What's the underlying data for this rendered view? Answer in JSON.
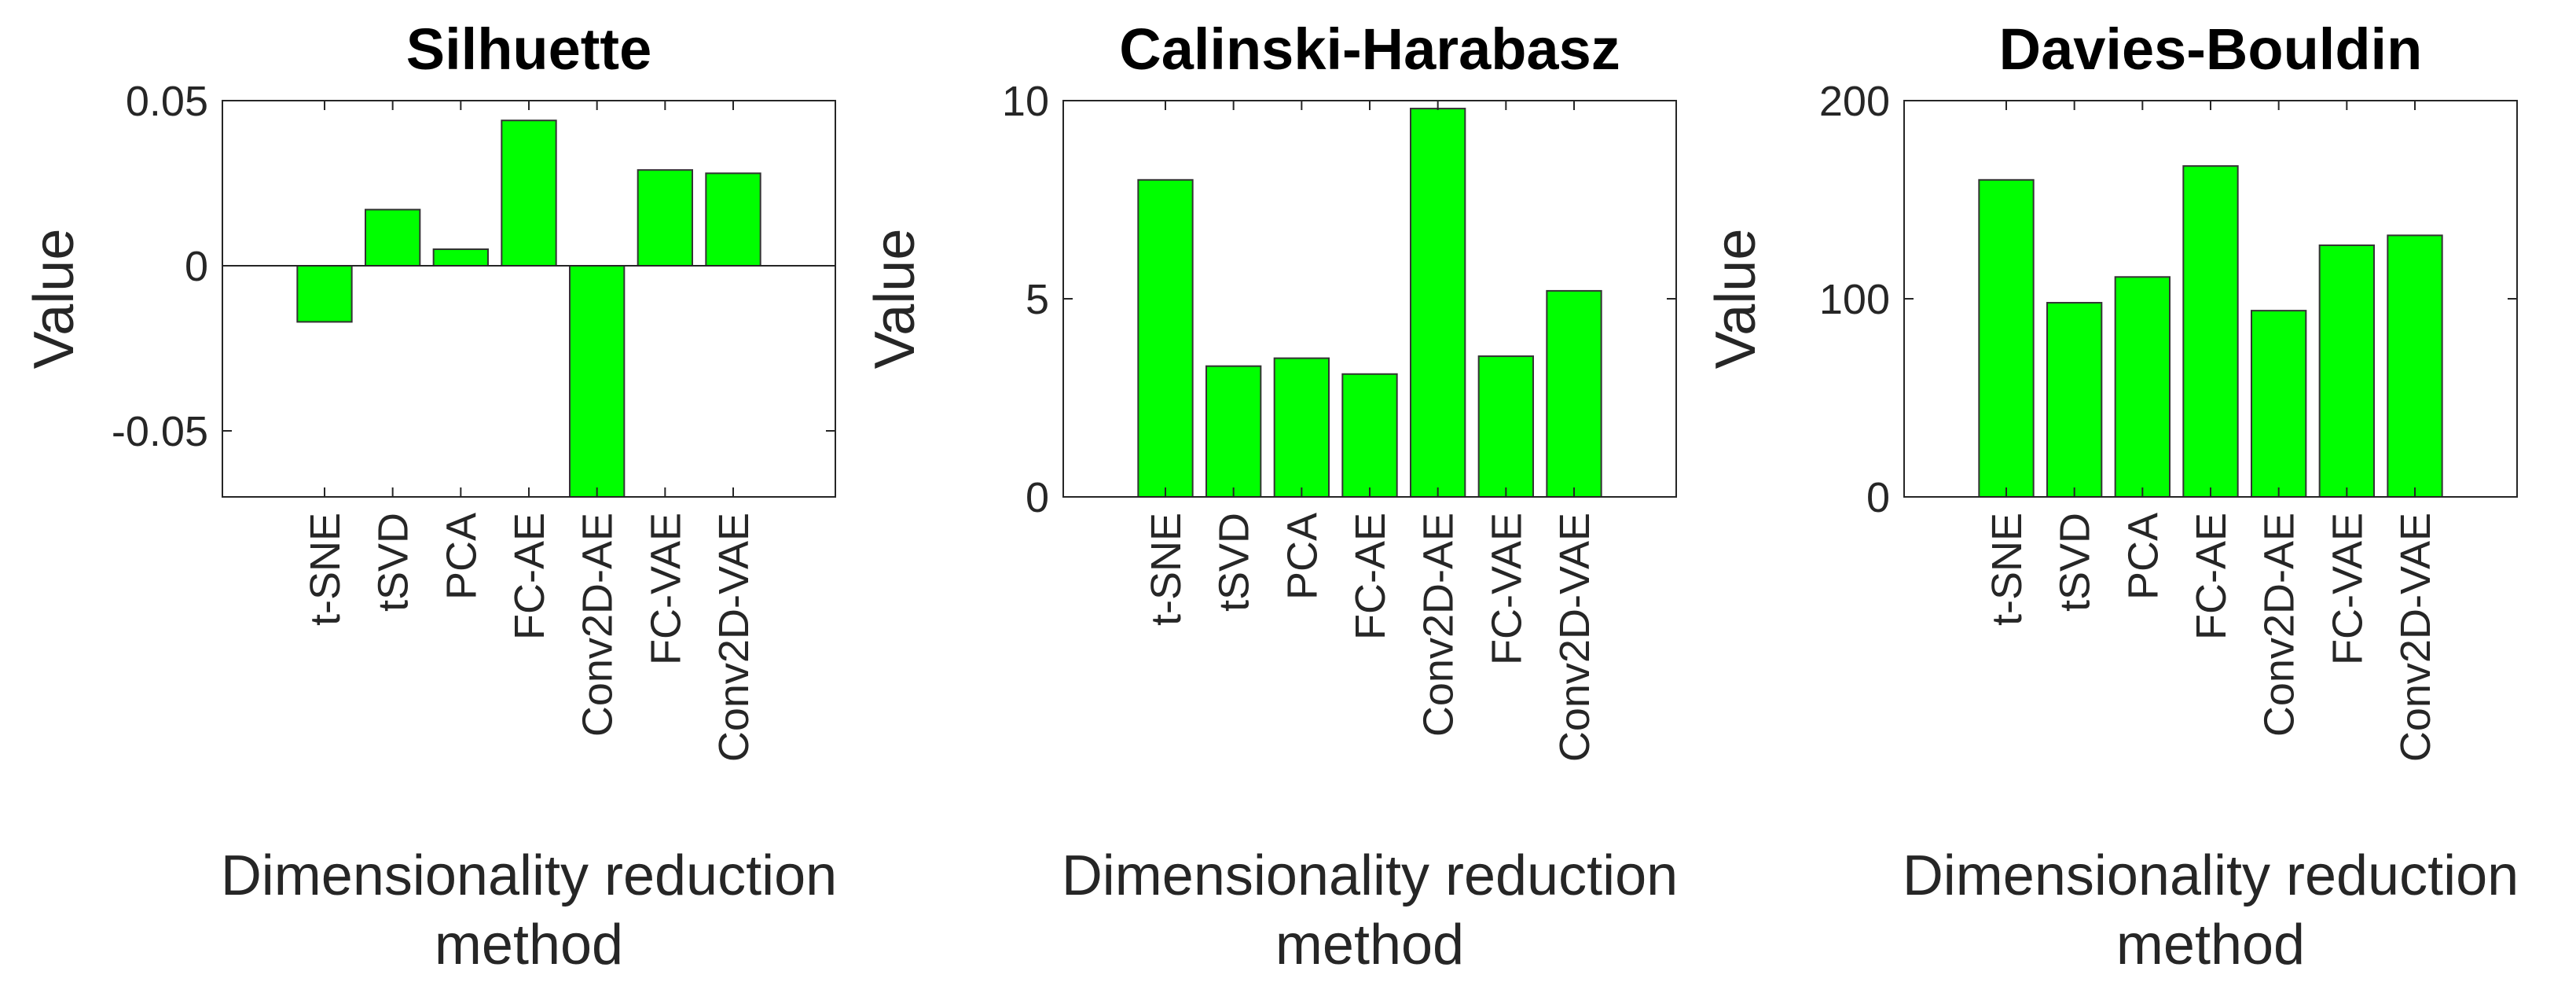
{
  "colors": {
    "bar": "#00ff00"
  },
  "chart_data": [
    {
      "type": "bar",
      "title": "Silhuette",
      "ylabel": "Value",
      "xlabel": "Dimensionality reduction method",
      "categories": [
        "t-SNE",
        "tSVD",
        "PCA",
        "FC-AE",
        "Conv2D-AE",
        "FC-VAE",
        "Conv2D-VAE"
      ],
      "values": [
        -0.017,
        0.017,
        0.005,
        0.044,
        -0.072,
        0.029,
        0.028
      ],
      "ylim": [
        -0.07,
        0.05
      ],
      "yticks": [
        -0.05,
        0,
        0.05
      ],
      "ytick_labels": [
        "-0.05",
        "0",
        "0.05"
      ],
      "zero_line": true,
      "grid": false
    },
    {
      "type": "bar",
      "title": "Calinski-Harabasz",
      "ylabel": "Value",
      "xlabel": "Dimensionality reduction method",
      "categories": [
        "t-SNE",
        "tSVD",
        "PCA",
        "FC-AE",
        "Conv2D-AE",
        "FC-VAE",
        "Conv2D-VAE"
      ],
      "values": [
        8.0,
        3.3,
        3.5,
        3.1,
        9.8,
        3.55,
        5.2
      ],
      "ylim": [
        0,
        10
      ],
      "yticks": [
        0,
        5,
        10
      ],
      "ytick_labels": [
        "0",
        "5",
        "10"
      ],
      "zero_line": false,
      "grid": false
    },
    {
      "type": "bar",
      "title": "Davies-Bouldin",
      "ylabel": "Value",
      "xlabel": "Dimensionality reduction method",
      "categories": [
        "t-SNE",
        "tSVD",
        "PCA",
        "FC-AE",
        "Conv2D-AE",
        "FC-VAE",
        "Conv2D-VAE"
      ],
      "values": [
        160,
        98,
        111,
        167,
        94,
        127,
        132
      ],
      "ylim": [
        0,
        200
      ],
      "yticks": [
        0,
        100,
        200
      ],
      "ytick_labels": [
        "0",
        "100",
        "200"
      ],
      "zero_line": false,
      "grid": false
    }
  ]
}
